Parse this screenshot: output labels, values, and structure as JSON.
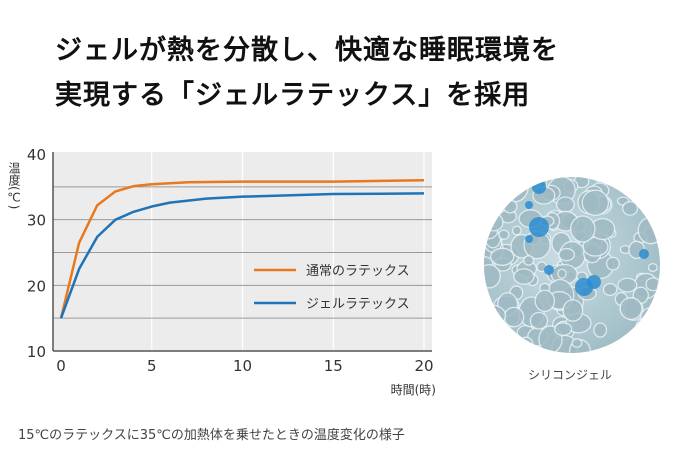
{
  "title_lines": [
    "ジェルが熱を分散し、快適な睡眠環境を",
    "実現する「ジェルラテックス」を採用"
  ],
  "caption": "15℃のラテックスに35℃の加熱体を乗せたときの温度変化の様子",
  "photo_caption": "シリコンジェル",
  "chart_data": {
    "type": "line",
    "title": "",
    "ylabel": "温度(℃)",
    "xlabel": "時間(時)",
    "xlim": [
      0,
      20
    ],
    "ylim": [
      10,
      40
    ],
    "xticks": [
      0,
      5,
      10,
      15,
      20
    ],
    "yticks": [
      10,
      20,
      30,
      40
    ],
    "grid": true,
    "legend_position": "center-right",
    "series": [
      {
        "name": "通常のラテックス",
        "color": "#e8791e",
        "x": [
          0,
          1,
          2,
          3,
          4,
          5,
          7,
          10,
          15,
          20
        ],
        "y": [
          15,
          26.5,
          32.2,
          34.3,
          35.1,
          35.4,
          35.7,
          35.8,
          35.8,
          36
        ]
      },
      {
        "name": "ジェルラテックス",
        "color": "#1f73b7",
        "x": [
          0,
          1,
          2,
          3,
          4,
          5,
          6,
          8,
          10,
          15,
          20
        ],
        "y": [
          15,
          22.5,
          27.4,
          30,
          31.2,
          32,
          32.6,
          33.2,
          33.5,
          33.9,
          34
        ]
      }
    ]
  }
}
